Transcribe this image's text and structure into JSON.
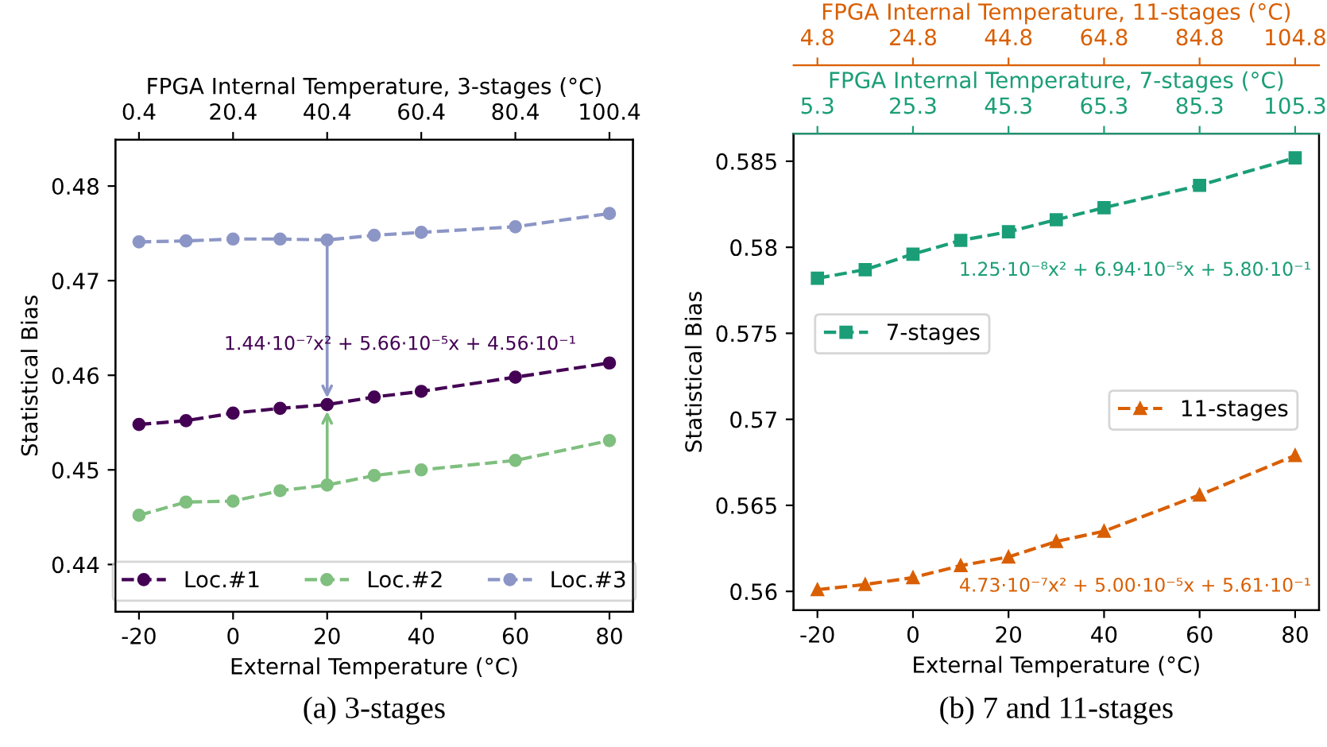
{
  "chart_data": [
    {
      "type": "line",
      "xlabel": "External Temperature (°C)",
      "ylabel": "Statistical Bias",
      "x2label": "FPGA Internal Temperature, 3-stages (°C)",
      "x": [
        -20,
        -10,
        0,
        10,
        20,
        30,
        40,
        60,
        80
      ],
      "series": [
        {
          "name": "Loc.#1",
          "color": "#440154",
          "values": [
            0.4548,
            0.4552,
            0.456,
            0.4565,
            0.4569,
            0.4577,
            0.4583,
            0.4598,
            0.4613
          ]
        },
        {
          "name": "Loc.#2",
          "color": "#7fbf7f",
          "values": [
            0.4452,
            0.4466,
            0.4467,
            0.4478,
            0.4484,
            0.4494,
            0.45,
            0.451,
            0.4531
          ]
        },
        {
          "name": "Loc.#3",
          "color": "#8c96c6",
          "values": [
            0.4741,
            0.4742,
            0.4744,
            0.4744,
            0.4743,
            0.4748,
            0.4751,
            0.4757,
            0.4771
          ]
        }
      ],
      "xlim": [
        -25,
        85
      ],
      "xticks": [
        -20,
        0,
        20,
        40,
        60,
        80
      ],
      "ylim": [
        0.435,
        0.4849
      ],
      "yticks": [
        0.44,
        0.45,
        0.46,
        0.47,
        0.48
      ],
      "x2lim": [
        -4.6,
        105.4
      ],
      "x2ticks": [
        0.4,
        20.4,
        40.4,
        60.4,
        80.4,
        100.4
      ],
      "marker": "circle",
      "line_style": "dashed",
      "legend": "bottom",
      "annotations": [
        "1.44·10⁻⁷x² + 5.66·10⁻⁵x + 4.56·10⁻¹",
        "(a) 3-stages"
      ]
    },
    {
      "type": "line",
      "xlabel": "External Temperature (°C)",
      "ylabel": "Statistical Bias",
      "x2label": "FPGA Internal Temperature, 7-stages (°C)",
      "x": [
        -20,
        -10,
        0,
        10,
        20,
        30,
        40,
        60,
        80
      ],
      "series": [
        {
          "name": "7-stages",
          "color": "#1b9e77",
          "values": [
            0.5782,
            0.5787,
            0.5796,
            0.5804,
            0.5809,
            0.5816,
            0.5823,
            0.5836,
            0.5852
          ]
        }
      ],
      "xlim": [
        -25,
        85
      ],
      "xticks": [
        -20,
        0,
        20,
        40,
        60,
        80
      ],
      "ylim": [
        0.5589,
        0.5866
      ],
      "yticks": [
        0.56,
        0.565,
        0.57,
        0.575,
        0.58,
        0.585
      ],
      "x2lim": [
        0.3,
        110.3
      ],
      "x2ticks": [
        5.3,
        25.3,
        45.3,
        65.3,
        85.3,
        105.3
      ],
      "marker": "square",
      "line_style": "dashed",
      "legend": "left",
      "annotations": [
        "1.25·10⁻⁸x² + 6.94·10⁻⁵x + 5.80·10⁻¹",
        "(b) 7 and 11-stages"
      ]
    },
    {
      "type": "line",
      "x2label": "FPGA Internal Temperature, 11-stages (°C)",
      "x": [
        -20,
        -10,
        0,
        10,
        20,
        30,
        40,
        60,
        80
      ],
      "series": [
        {
          "name": "11-stages",
          "color": "#d95f02",
          "values": [
            0.5601,
            0.5604,
            0.5608,
            0.5615,
            0.562,
            0.5629,
            0.5635,
            0.5656,
            0.5679
          ]
        }
      ],
      "xlim": [
        -25,
        85
      ],
      "ylim": [
        0.5589,
        0.5866
      ],
      "x2lim": [
        -0.2,
        109.8
      ],
      "x2ticks": [
        4.8,
        24.8,
        44.8,
        64.8,
        84.8,
        104.8
      ],
      "marker": "triangle",
      "line_style": "dashed",
      "legend": "right",
      "tick_labels": "x",
      "annotations": [
        "4.73·10⁻⁷x² + 5.00·10⁻⁵x + 5.61·10⁻¹"
      ]
    }
  ]
}
